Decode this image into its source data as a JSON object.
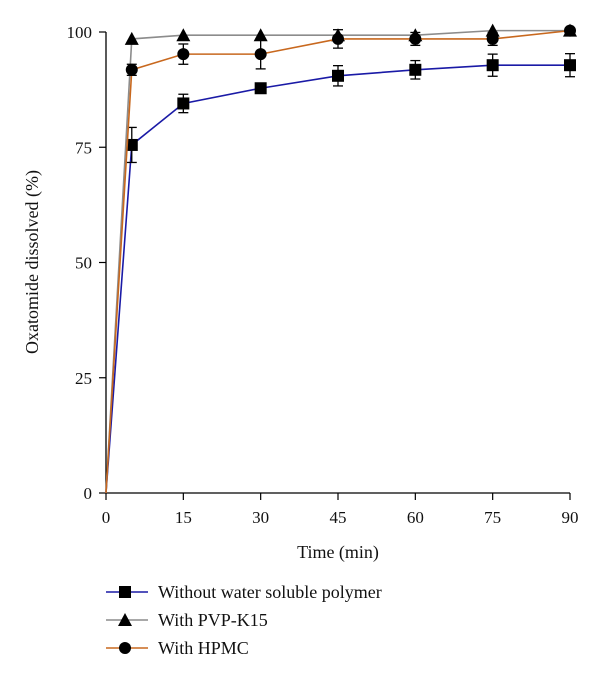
{
  "chart_data": {
    "type": "line",
    "title": "",
    "xlabel": "Time (min)",
    "ylabel": "Oxatomide dissolved (%)",
    "xlim": [
      0,
      90
    ],
    "ylim": [
      0,
      100
    ],
    "x_ticks": [
      0,
      15,
      30,
      45,
      60,
      75,
      90
    ],
    "y_ticks": [
      0,
      25,
      50,
      75,
      100
    ],
    "x_tick_labels": [
      "0",
      "15",
      "30",
      "45",
      "60",
      "75",
      "90"
    ],
    "y_tick_labels": [
      "0",
      "25",
      "50",
      "75",
      "100"
    ],
    "grid": false,
    "legend_position": "bottom",
    "series": [
      {
        "name": "Without water soluble polymer",
        "color": "#1a1aa6",
        "marker": "square",
        "x": [
          0,
          5,
          15,
          30,
          45,
          60,
          75,
          90
        ],
        "y": [
          0,
          75.5,
          84.5,
          87.8,
          90.5,
          91.8,
          92.8,
          92.8
        ],
        "error": [
          0,
          3.8,
          2.0,
          0.8,
          2.2,
          2.0,
          2.4,
          2.5
        ]
      },
      {
        "name": "With PVP-K15",
        "color": "#8c8c8c",
        "marker": "triangle",
        "x": [
          0,
          5,
          15,
          30,
          45,
          60,
          75,
          90
        ],
        "y": [
          0,
          98.5,
          99.3,
          99.3,
          99.3,
          99.3,
          100.3,
          100.3
        ],
        "error": [
          0,
          0,
          0,
          0,
          0,
          0,
          0,
          0
        ]
      },
      {
        "name": "With HPMC",
        "color": "#c8681e",
        "marker": "circle",
        "x": [
          0,
          5,
          15,
          30,
          45,
          60,
          75,
          90
        ],
        "y": [
          0,
          91.8,
          95.2,
          95.2,
          98.5,
          98.5,
          98.5,
          100.3
        ],
        "error": [
          0,
          1.2,
          2.2,
          3.2,
          2.0,
          1.4,
          1.4,
          0
        ]
      }
    ]
  }
}
